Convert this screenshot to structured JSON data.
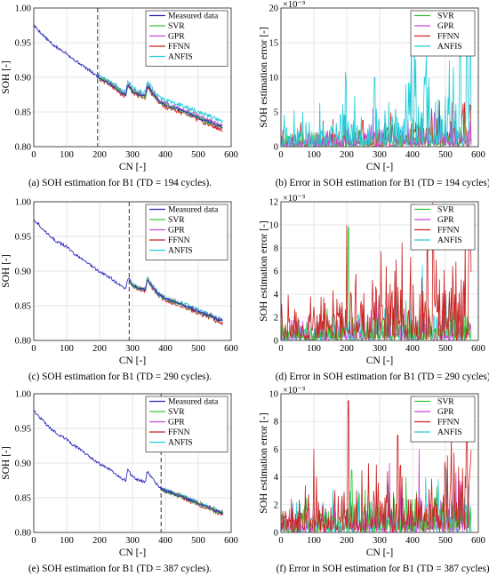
{
  "colors": {
    "measured": "#2b2bbf",
    "SVR": "#33cc33",
    "GPR": "#cc44dd",
    "FFNN": "#cc2222",
    "ANFIS": "#22cdda",
    "grid": "#dcdcdc",
    "td_line": "#333333"
  },
  "chart_data": [
    {
      "id": "a",
      "type": "line",
      "caption": "(a) SOH estimation for B1 (TD = 194 cycles).",
      "xlabel": "CN [-]",
      "ylabel": "SOH [-]",
      "xlim": [
        0,
        600
      ],
      "ylim": [
        0.8,
        1.0
      ],
      "xticks": [
        "0",
        "100",
        "200",
        "300",
        "400",
        "500",
        "600"
      ],
      "yticks": [
        "0.80",
        "0.85",
        "0.90",
        "0.95",
        "1.00"
      ],
      "grid": true,
      "legend": "top-right",
      "td": 194,
      "measured": {
        "name": "Measured data",
        "x": [
          0,
          20,
          40,
          60,
          80,
          100,
          110,
          120,
          140,
          160,
          180,
          194,
          200,
          220,
          240,
          260,
          280,
          285,
          290,
          300,
          320,
          340,
          345,
          360,
          380,
          400,
          420,
          440,
          460,
          480,
          500,
          520,
          540,
          560,
          575
        ],
        "y": [
          0.975,
          0.965,
          0.955,
          0.946,
          0.94,
          0.935,
          0.93,
          0.926,
          0.92,
          0.913,
          0.906,
          0.901,
          0.899,
          0.894,
          0.888,
          0.88,
          0.874,
          0.89,
          0.888,
          0.88,
          0.875,
          0.873,
          0.889,
          0.878,
          0.866,
          0.86,
          0.857,
          0.854,
          0.85,
          0.846,
          0.842,
          0.838,
          0.835,
          0.83,
          0.828
        ]
      },
      "series": [
        {
          "name": "SVR",
          "y_offset": 0.0
        },
        {
          "name": "GPR",
          "y_offset": 0.002
        },
        {
          "name": "FFNN",
          "y_offset": -0.003
        },
        {
          "name": "ANFIS",
          "y_offset": 0.007
        }
      ]
    },
    {
      "id": "b",
      "type": "line",
      "caption": "(b) Error in SOH estimation for B1 (TD = 194 cycles).",
      "xlabel": "CN [-]",
      "ylabel": "SOH estimation error [-]",
      "multiplier": "×10⁻³",
      "xlim": [
        0,
        600
      ],
      "ylim": [
        0,
        20
      ],
      "xticks": [
        "0",
        "100",
        "200",
        "300",
        "400",
        "500",
        "600"
      ],
      "yticks": [
        "0",
        "5",
        "10",
        "15",
        "20"
      ],
      "grid": true,
      "legend": "top-right",
      "series": [
        {
          "name": "SVR",
          "mean": [
            1.0,
            1.5
          ],
          "max": 5,
          "spikes": [
            [
              195,
              4.5
            ],
            [
              560,
              5
            ]
          ]
        },
        {
          "name": "GPR",
          "mean": [
            0.8,
            2.0
          ],
          "max": 5.5,
          "spikes": [
            [
              280,
              5.5
            ],
            [
              500,
              4.5
            ]
          ]
        },
        {
          "name": "FFNN",
          "mean": [
            1.0,
            2.5
          ],
          "max": 6,
          "spikes": [
            [
              60,
              3.5
            ],
            [
              575,
              6
            ]
          ]
        },
        {
          "name": "ANFIS",
          "mean": [
            1.5,
            7.0
          ],
          "max": 19,
          "spikes": [
            [
              196,
              10.8
            ],
            [
              285,
              10
            ],
            [
              440,
              10.5
            ],
            [
              545,
              15
            ],
            [
              565,
              18.5
            ],
            [
              575,
              19
            ]
          ]
        }
      ]
    },
    {
      "id": "c",
      "type": "line",
      "caption": "(c) SOH estimation for B1 (TD = 290 cycles).",
      "xlabel": "CN [-]",
      "ylabel": "SOH [-]",
      "xlim": [
        0,
        600
      ],
      "ylim": [
        0.8,
        1.0
      ],
      "xticks": [
        "0",
        "100",
        "200",
        "300",
        "400",
        "500",
        "600"
      ],
      "yticks": [
        "0.80",
        "0.85",
        "0.90",
        "0.95",
        "1.00"
      ],
      "grid": true,
      "legend": "top-right",
      "td": 290,
      "measured": {
        "name": "Measured data",
        "x": [
          0,
          20,
          40,
          60,
          80,
          100,
          110,
          120,
          140,
          160,
          180,
          200,
          220,
          240,
          260,
          280,
          285,
          290,
          300,
          320,
          340,
          345,
          360,
          380,
          400,
          420,
          440,
          460,
          480,
          500,
          520,
          540,
          560,
          575
        ],
        "y": [
          0.975,
          0.965,
          0.955,
          0.946,
          0.94,
          0.935,
          0.93,
          0.926,
          0.92,
          0.913,
          0.906,
          0.899,
          0.894,
          0.888,
          0.88,
          0.874,
          0.89,
          0.888,
          0.88,
          0.875,
          0.873,
          0.889,
          0.878,
          0.866,
          0.86,
          0.857,
          0.854,
          0.85,
          0.846,
          0.842,
          0.838,
          0.835,
          0.83,
          0.828
        ]
      },
      "series": [
        {
          "name": "SVR",
          "y_offset": 0.0
        },
        {
          "name": "GPR",
          "y_offset": 0.001
        },
        {
          "name": "FFNN",
          "y_offset": -0.003
        },
        {
          "name": "ANFIS",
          "y_offset": 0.002
        }
      ]
    },
    {
      "id": "d",
      "type": "line",
      "caption": "(d) Error in SOH estimation for B1 (TD = 290 cycles).",
      "xlabel": "CN [-]",
      "ylabel": "SOH estimation error [-]",
      "multiplier": "×10⁻³",
      "xlim": [
        0,
        600
      ],
      "ylim": [
        0,
        12
      ],
      "xticks": [
        "0",
        "100",
        "200",
        "300",
        "400",
        "500",
        "600"
      ],
      "yticks": [
        "0",
        "2",
        "4",
        "6",
        "8",
        "10",
        "12"
      ],
      "grid": true,
      "legend": "top-right",
      "series": [
        {
          "name": "SVR",
          "mean": [
            0.8,
            1.5
          ],
          "max": 10,
          "spikes": [
            [
              205,
              9.8
            ]
          ]
        },
        {
          "name": "GPR",
          "mean": [
            0.6,
            1.2
          ],
          "max": 4,
          "spikes": [
            [
              290,
              3.5
            ]
          ]
        },
        {
          "name": "FFNN",
          "mean": [
            1.2,
            5.0
          ],
          "max": 11,
          "spikes": [
            [
              200,
              10
            ],
            [
              350,
              7
            ],
            [
              445,
              8
            ],
            [
              560,
              8.5
            ],
            [
              575,
              11
            ]
          ]
        },
        {
          "name": "ANFIS",
          "mean": [
            0.8,
            1.8
          ],
          "max": 6.5,
          "spikes": [
            [
              430,
              6.5
            ],
            [
              500,
              4
            ]
          ]
        }
      ]
    },
    {
      "id": "e",
      "type": "line",
      "caption": "(e) SOH estimation for B1 (TD = 387 cycles).",
      "xlabel": "CN [-]",
      "ylabel": "SOH [-]",
      "xlim": [
        0,
        600
      ],
      "ylim": [
        0.8,
        1.0
      ],
      "xticks": [
        "0",
        "100",
        "200",
        "300",
        "400",
        "500",
        "600"
      ],
      "yticks": [
        "0.80",
        "0.85",
        "0.90",
        "0.95",
        "1.00"
      ],
      "grid": true,
      "legend": "top-right",
      "td": 387,
      "measured": {
        "name": "Measured data",
        "x": [
          0,
          20,
          40,
          60,
          80,
          100,
          110,
          120,
          140,
          160,
          180,
          200,
          220,
          240,
          260,
          280,
          285,
          290,
          300,
          320,
          340,
          345,
          360,
          380,
          400,
          420,
          440,
          460,
          480,
          500,
          520,
          540,
          560,
          575
        ],
        "y": [
          0.975,
          0.965,
          0.955,
          0.946,
          0.94,
          0.935,
          0.93,
          0.926,
          0.92,
          0.913,
          0.906,
          0.899,
          0.894,
          0.888,
          0.88,
          0.874,
          0.89,
          0.888,
          0.88,
          0.875,
          0.873,
          0.889,
          0.878,
          0.866,
          0.86,
          0.857,
          0.854,
          0.85,
          0.846,
          0.842,
          0.838,
          0.835,
          0.83,
          0.828
        ]
      },
      "series": [
        {
          "name": "SVR",
          "y_offset": 0.0
        },
        {
          "name": "GPR",
          "y_offset": 0.001
        },
        {
          "name": "FFNN",
          "y_offset": -0.002
        },
        {
          "name": "ANFIS",
          "y_offset": 0.001
        }
      ]
    },
    {
      "id": "f",
      "type": "line",
      "caption": "(f) Error in SOH estimation for B1 (TD = 387 cycles).",
      "xlabel": "CN [-]",
      "ylabel": "SOH estimation error [-]",
      "multiplier": "×10⁻³",
      "xlim": [
        0,
        600
      ],
      "ylim": [
        0,
        10
      ],
      "xticks": [
        "0",
        "100",
        "200",
        "300",
        "400",
        "500",
        "600"
      ],
      "yticks": [
        "0",
        "2",
        "4",
        "6",
        "8",
        "10"
      ],
      "grid": true,
      "legend": "top-right",
      "series": [
        {
          "name": "SVR",
          "mean": [
            0.8,
            1.6
          ],
          "max": 5,
          "spikes": [
            [
              215,
              4.5
            ]
          ]
        },
        {
          "name": "GPR",
          "mean": [
            0.7,
            1.5
          ],
          "max": 6,
          "spikes": [
            [
              420,
              6
            ],
            [
              330,
              5
            ]
          ]
        },
        {
          "name": "FFNN",
          "mean": [
            1.2,
            2.8
          ],
          "max": 9.5,
          "spikes": [
            [
              205,
              9.5
            ],
            [
              100,
              6
            ],
            [
              355,
              7
            ],
            [
              565,
              9
            ]
          ]
        },
        {
          "name": "ANFIS",
          "mean": [
            0.9,
            1.6
          ],
          "max": 4,
          "spikes": [
            [
              440,
              4
            ]
          ]
        }
      ]
    }
  ]
}
